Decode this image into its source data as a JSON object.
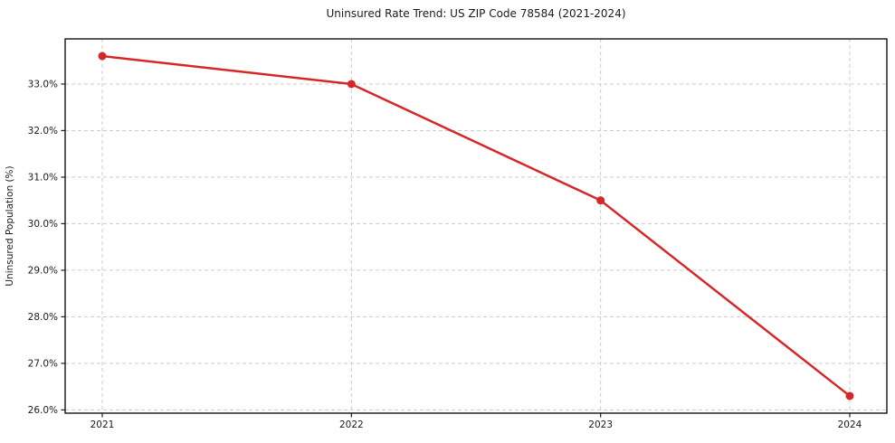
{
  "chart_data": {
    "type": "line",
    "title": "Uninsured Rate Trend: US ZIP Code 78584 (2021-2024)",
    "xlabel": "",
    "ylabel": "Uninsured Population (%)",
    "categories": [
      "2021",
      "2022",
      "2023",
      "2024"
    ],
    "series": [
      {
        "name": "Uninsured Population (%)",
        "values": [
          33.6,
          33.0,
          30.5,
          26.3
        ],
        "color": "#d62728",
        "marker": "circle"
      }
    ],
    "xtick_labels": [
      "2021",
      "2022",
      "2023",
      "2024"
    ],
    "yticks": [
      26,
      27,
      28,
      29,
      30,
      31,
      32,
      33
    ],
    "ytick_labels": [
      "26.0%",
      "27.0%",
      "28.0%",
      "29.0%",
      "30.0%",
      "31.0%",
      "32.0%",
      "33.0%"
    ],
    "ylim": [
      25.93,
      33.97
    ],
    "grid": true,
    "grid_style": "dashed",
    "grid_color": "#cccccc",
    "axis_color": "#000000",
    "tick_color": "#1a1a1a",
    "legend": "none",
    "background": "#ffffff"
  }
}
